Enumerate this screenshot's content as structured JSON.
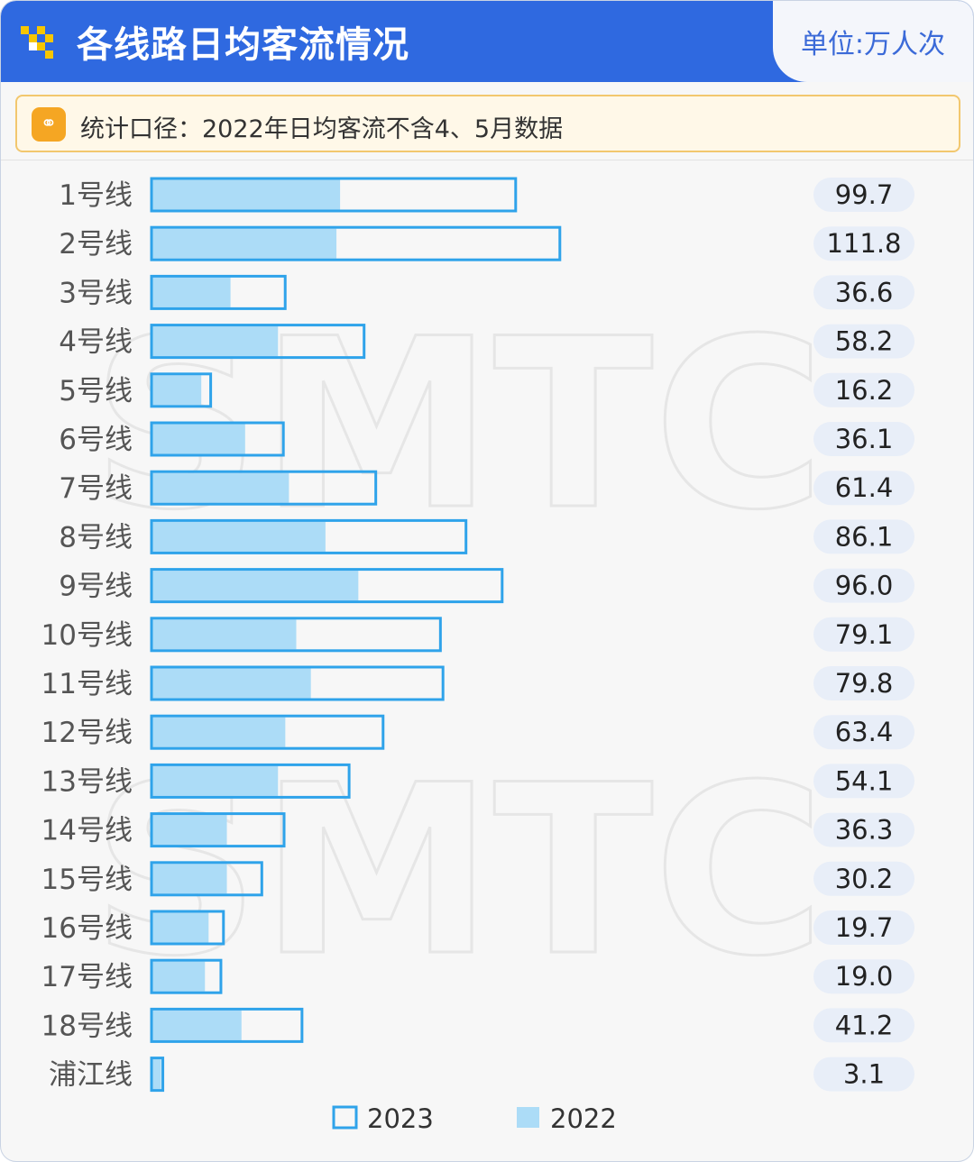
{
  "header": {
    "title": "各线路日均客流情况",
    "unit": "单位:万人次"
  },
  "notice": {
    "icon": "link-icon",
    "text": "统计口径：2022年日均客流不含4、5月数据"
  },
  "watermark": "SMTC",
  "colors": {
    "header_bg": "#2f69e0",
    "bar_2023_stroke": "#2fa3ea",
    "bar_2022_fill": "#acdcf7",
    "value_pill": "#e8eef8"
  },
  "chart_data": {
    "type": "bar",
    "orientation": "horizontal",
    "title": "各线路日均客流情况",
    "unit": "万人次",
    "categories": [
      "1号线",
      "2号线",
      "3号线",
      "4号线",
      "5号线",
      "6号线",
      "7号线",
      "8号线",
      "9号线",
      "10号线",
      "11号线",
      "12号线",
      "13号线",
      "14号线",
      "15号线",
      "16号线",
      "17号线",
      "18号线",
      "浦江线"
    ],
    "series": [
      {
        "name": "2023",
        "style": "outline",
        "values": [
          99.7,
          111.8,
          36.6,
          58.2,
          16.2,
          36.1,
          61.4,
          86.1,
          96.0,
          79.1,
          79.8,
          63.4,
          54.1,
          36.3,
          30.2,
          19.7,
          19.0,
          41.2,
          3.1
        ]
      },
      {
        "name": "2022",
        "style": "filled",
        "values": [
          52,
          51,
          22,
          35,
          14,
          26,
          38,
          48,
          57,
          40,
          44,
          37,
          35,
          21,
          21,
          16,
          15,
          25,
          3
        ]
      }
    ],
    "value_labels": [
      "99.7",
      "111.8",
      "36.6",
      "58.2",
      "16.2",
      "36.1",
      "61.4",
      "86.1",
      "96.0",
      "79.1",
      "79.8",
      "63.4",
      "54.1",
      "36.3",
      "30.2",
      "19.7",
      "19.0",
      "41.2",
      "3.1"
    ],
    "xlim": [
      0,
      122
    ],
    "legend": [
      "2023",
      "2022"
    ],
    "legend_position": "bottom-center"
  }
}
